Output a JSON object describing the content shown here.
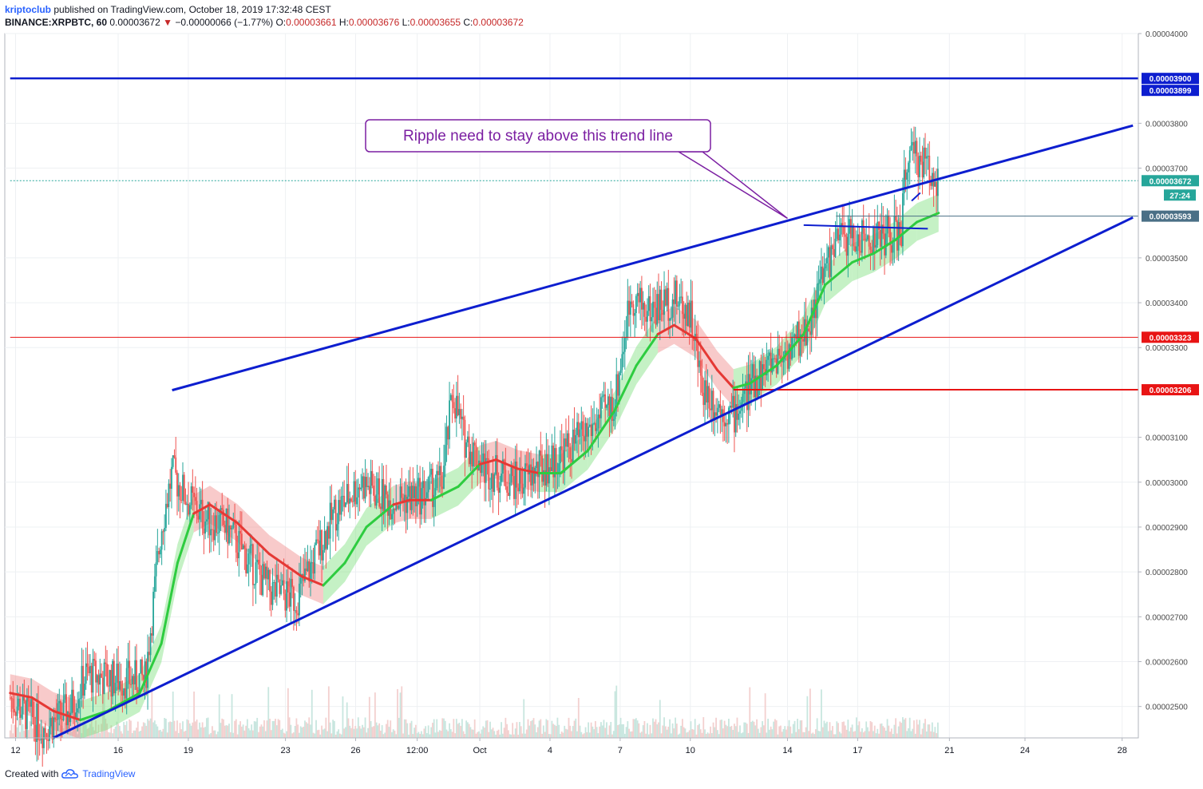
{
  "header": {
    "author": "kriptoclub",
    "published": "published on TradingView.com, October 18, 2019 17:32:48 CEST",
    "symbol": "BINANCE:XRPBTC, 60",
    "last": "0.00003672",
    "change": "−0.00000066 (−1.77%)",
    "o_label": "O:",
    "o": "0.00003661",
    "h_label": "H:",
    "h": "0.00003676",
    "l_label": "L:",
    "l": "0.00003655",
    "c_label": "C:",
    "c": "0.00003672"
  },
  "footer": {
    "created_with": "Created with",
    "brand": "TradingView"
  },
  "colors": {
    "trend_lines": "#0d1ecf",
    "support_red": "#e81414",
    "bull_band": "#7ee07e",
    "bear_band": "#f08a8a",
    "candle_up": "#26a69a",
    "candle_down": "#ef5350",
    "annotation": "#7b1fa2",
    "price_tag": "#26a69a",
    "timer_tag": "#26a69a",
    "ref_tag": "#4a6f86"
  },
  "annotation": {
    "text": "Ripple need to stay above this trend line"
  },
  "chart_data": {
    "type": "candlestick",
    "title": "BINANCE:XRPBTC, 60",
    "ylim": [
      2.43e-05,
      4e-05
    ],
    "y_ticks": [
      "0.00004000",
      "0.00003800",
      "0.00003700",
      "0.00003500",
      "0.00003400",
      "0.00003300",
      "0.00003100",
      "0.00003000",
      "0.00002900",
      "0.00002800",
      "0.00002700",
      "0.00002600",
      "0.00002500"
    ],
    "x_ticks": [
      "12",
      "16",
      "19",
      "23",
      "26",
      "12:00",
      "Oct",
      "4",
      "7",
      "10",
      "14",
      "17",
      "21",
      "24",
      "28"
    ],
    "price_tags": [
      {
        "label": "0.00003900",
        "value": 3.9e-05,
        "color": "#0d1ecf"
      },
      {
        "label": "0.00003899",
        "value": 3.899e-05,
        "color": "#0d1ecf"
      },
      {
        "label": "0.00003672",
        "value": 3.672e-05,
        "color": "#26a69a"
      },
      {
        "label": "27:24",
        "value": 3.672e-05,
        "color": "#26a69a"
      },
      {
        "label": "0.00003593",
        "value": 3.593e-05,
        "color": "#4a6f86"
      },
      {
        "label": "0.00003323",
        "value": 3.323e-05,
        "color": "#e81414"
      },
      {
        "label": "0.00003206",
        "value": 3.206e-05,
        "color": "#e81414"
      }
    ],
    "series": [
      {
        "name": "price_path",
        "points": [
          [
            0.0,
            2.52e-05
          ],
          [
            3.0,
            2.45e-05
          ],
          [
            5.5,
            2.49e-05
          ],
          [
            7.0,
            2.57e-05
          ],
          [
            10.0,
            2.56e-05
          ],
          [
            12.5,
            2.56e-05
          ],
          [
            14.0,
            2.9e-05
          ],
          [
            15.0,
            3.02e-05
          ],
          [
            16.5,
            2.96e-05
          ],
          [
            18.0,
            2.92e-05
          ],
          [
            20.0,
            2.9e-05
          ],
          [
            22.0,
            2.83e-05
          ],
          [
            24.0,
            2.76e-05
          ],
          [
            26.5,
            2.74e-05
          ],
          [
            28.0,
            2.82e-05
          ],
          [
            30.0,
            2.93e-05
          ],
          [
            32.5,
            3e-05
          ],
          [
            35.0,
            2.96e-05
          ],
          [
            38.0,
            2.97e-05
          ],
          [
            40.0,
            3e-05
          ],
          [
            41.0,
            3.2e-05
          ],
          [
            42.0,
            3.1e-05
          ],
          [
            44.0,
            3.03e-05
          ],
          [
            47.0,
            3e-05
          ],
          [
            50.0,
            3.04e-05
          ],
          [
            53.0,
            3.1e-05
          ],
          [
            56.0,
            3.18e-05
          ],
          [
            57.5,
            3.42e-05
          ],
          [
            59.0,
            3.38e-05
          ],
          [
            61.5,
            3.41e-05
          ],
          [
            63.0,
            3.38e-05
          ],
          [
            64.0,
            3.22e-05
          ],
          [
            65.5,
            3.17e-05
          ],
          [
            67.0,
            3.15e-05
          ],
          [
            69.0,
            3.23e-05
          ],
          [
            71.0,
            3.28e-05
          ],
          [
            72.5,
            3.3e-05
          ],
          [
            74.0,
            3.35e-05
          ],
          [
            75.5,
            3.48e-05
          ],
          [
            77.0,
            3.55e-05
          ],
          [
            79.0,
            3.54e-05
          ],
          [
            81.0,
            3.55e-05
          ],
          [
            82.5,
            3.55e-05
          ],
          [
            83.0,
            3.72e-05
          ],
          [
            84.5,
            3.72e-05
          ],
          [
            86.0,
            3.672e-05
          ]
        ]
      }
    ],
    "moving_average": [
      {
        "x": 0.0,
        "y": 2.53e-05,
        "trend": "down"
      },
      {
        "x": 2.0,
        "y": 2.52e-05,
        "trend": "down"
      },
      {
        "x": 4.0,
        "y": 2.49e-05,
        "trend": "down"
      },
      {
        "x": 6.5,
        "y": 2.47e-05,
        "trend": "down"
      },
      {
        "x": 9.0,
        "y": 2.49e-05,
        "trend": "up"
      },
      {
        "x": 12.0,
        "y": 2.53e-05,
        "trend": "up"
      },
      {
        "x": 14.0,
        "y": 2.64e-05,
        "trend": "up"
      },
      {
        "x": 15.5,
        "y": 2.82e-05,
        "trend": "up"
      },
      {
        "x": 17.0,
        "y": 2.93e-05,
        "trend": "up"
      },
      {
        "x": 18.5,
        "y": 2.95e-05,
        "trend": "down"
      },
      {
        "x": 21.0,
        "y": 2.91e-05,
        "trend": "down"
      },
      {
        "x": 24.0,
        "y": 2.84e-05,
        "trend": "down"
      },
      {
        "x": 27.0,
        "y": 2.79e-05,
        "trend": "down"
      },
      {
        "x": 29.0,
        "y": 2.77e-05,
        "trend": "down"
      },
      {
        "x": 31.0,
        "y": 2.82e-05,
        "trend": "up"
      },
      {
        "x": 33.0,
        "y": 2.9e-05,
        "trend": "up"
      },
      {
        "x": 35.5,
        "y": 2.95e-05,
        "trend": "up"
      },
      {
        "x": 37.0,
        "y": 2.96e-05,
        "trend": "down"
      },
      {
        "x": 39.0,
        "y": 2.96e-05,
        "trend": "down"
      },
      {
        "x": 41.5,
        "y": 2.99e-05,
        "trend": "up"
      },
      {
        "x": 43.5,
        "y": 3.04e-05,
        "trend": "up"
      },
      {
        "x": 45.0,
        "y": 3.05e-05,
        "trend": "down"
      },
      {
        "x": 47.0,
        "y": 3.03e-05,
        "trend": "down"
      },
      {
        "x": 49.0,
        "y": 3.02e-05,
        "trend": "down"
      },
      {
        "x": 51.0,
        "y": 3.02e-05,
        "trend": "up"
      },
      {
        "x": 53.5,
        "y": 3.07e-05,
        "trend": "up"
      },
      {
        "x": 56.0,
        "y": 3.16e-05,
        "trend": "up"
      },
      {
        "x": 58.0,
        "y": 3.26e-05,
        "trend": "up"
      },
      {
        "x": 60.0,
        "y": 3.33e-05,
        "trend": "up"
      },
      {
        "x": 61.5,
        "y": 3.35e-05,
        "trend": "down"
      },
      {
        "x": 63.5,
        "y": 3.32e-05,
        "trend": "down"
      },
      {
        "x": 65.5,
        "y": 3.25e-05,
        "trend": "down"
      },
      {
        "x": 67.0,
        "y": 3.21e-05,
        "trend": "down"
      },
      {
        "x": 68.5,
        "y": 3.22e-05,
        "trend": "up"
      },
      {
        "x": 71.0,
        "y": 3.26e-05,
        "trend": "up"
      },
      {
        "x": 73.5,
        "y": 3.33e-05,
        "trend": "up"
      },
      {
        "x": 75.5,
        "y": 3.44e-05,
        "trend": "up"
      },
      {
        "x": 78.0,
        "y": 3.49e-05,
        "trend": "up"
      },
      {
        "x": 80.0,
        "y": 3.51e-05,
        "trend": "up"
      },
      {
        "x": 82.0,
        "y": 3.54e-05,
        "trend": "up"
      },
      {
        "x": 84.0,
        "y": 3.58e-05,
        "trend": "up"
      },
      {
        "x": 86.0,
        "y": 3.6e-05,
        "trend": "up"
      }
    ],
    "trend_lines": [
      {
        "name": "upper-resistance",
        "x1": 15.0,
        "y1": 3.205e-05,
        "x2": 104.0,
        "y2": 3.795e-05,
        "color": "#0d1ecf"
      },
      {
        "name": "lower-support",
        "x1": 4.0,
        "y1": 2.43e-05,
        "x2": 104.0,
        "y2": 3.59e-05,
        "color": "#0d1ecf"
      },
      {
        "name": "short-resistance",
        "x1": 73.5,
        "y1": 3.573e-05,
        "x2": 85.0,
        "y2": 3.565e-05,
        "color": "#0d1ecf"
      },
      {
        "name": "short-blue-mark",
        "x1": 83.5,
        "y1": 3.627e-05,
        "x2": 84.3,
        "y2": 3.645e-05,
        "color": "#0d1ecf"
      }
    ],
    "horizontal_lines": [
      {
        "name": "resistance-3900",
        "y": 3.9e-05,
        "x_start": 0.0,
        "color": "#0d1ecf"
      },
      {
        "name": "level-3323",
        "y": 3.323e-05,
        "x_start": 0.0,
        "color": "#e81414"
      },
      {
        "name": "level-3206",
        "y": 3.206e-05,
        "x_start": 67.0,
        "color": "#e81414"
      },
      {
        "name": "level-3593",
        "y": 3.593e-05,
        "x_start": 76.5,
        "color": "#4a6f86"
      },
      {
        "name": "last-price-3672",
        "y": 3.672e-05,
        "x_start": 0.0,
        "color": "#26a69a"
      }
    ],
    "xlim": [
      -0.5,
      104.5
    ],
    "x_tick_positions": [
      0.5,
      10.0,
      16.5,
      25.5,
      32.0,
      37.7,
      43.5,
      50.0,
      56.5,
      63.0,
      72.0,
      78.5,
      87.0,
      94.0,
      103.0
    ],
    "annotation_target": {
      "x": 72.0,
      "y": 3.588e-05
    }
  }
}
